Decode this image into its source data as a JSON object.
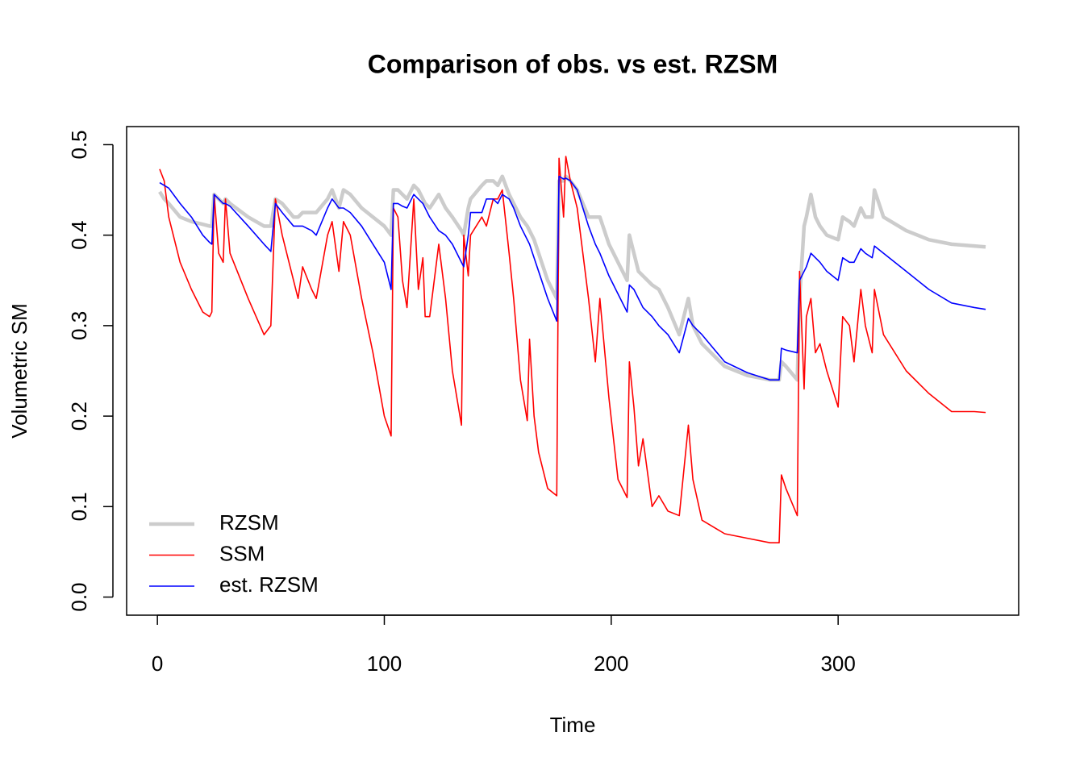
{
  "chart_data": {
    "type": "line",
    "title": "Comparison of obs. vs est. RZSM",
    "x_label": "Time",
    "y_label": "Volumetric SM",
    "x": [
      1,
      3,
      5,
      10,
      15,
      20,
      23,
      24,
      25,
      27,
      29,
      30,
      32,
      40,
      47,
      50,
      52,
      55,
      60,
      62,
      64,
      68,
      70,
      75,
      77,
      80,
      82,
      85,
      90,
      95,
      100,
      103,
      104,
      106,
      108,
      110,
      113,
      115,
      117,
      118,
      120,
      124,
      127,
      130,
      134,
      135,
      137,
      138,
      143,
      145,
      148,
      150,
      152,
      155,
      157,
      160,
      163,
      164,
      166,
      168,
      172,
      176,
      177,
      179,
      180,
      182,
      185,
      190,
      193,
      195,
      199,
      203,
      207,
      208,
      210,
      212,
      214,
      218,
      221,
      225,
      230,
      234,
      236,
      240,
      250,
      260,
      270,
      274,
      275,
      277,
      282,
      283,
      285,
      286,
      288,
      290,
      292,
      295,
      300,
      302,
      305,
      307,
      310,
      312,
      315,
      316,
      320,
      330,
      340,
      350,
      360,
      365
    ],
    "series": [
      {
        "name": "RZSM",
        "color": "#cccccc",
        "values": [
          0.448,
          0.44,
          0.435,
          0.42,
          0.415,
          0.412,
          0.41,
          0.41,
          0.445,
          0.44,
          0.435,
          0.44,
          0.435,
          0.42,
          0.41,
          0.41,
          0.44,
          0.435,
          0.42,
          0.42,
          0.425,
          0.425,
          0.425,
          0.44,
          0.45,
          0.43,
          0.45,
          0.445,
          0.43,
          0.42,
          0.41,
          0.4,
          0.45,
          0.45,
          0.445,
          0.44,
          0.455,
          0.45,
          0.44,
          0.435,
          0.43,
          0.445,
          0.43,
          0.42,
          0.405,
          0.4,
          0.43,
          0.44,
          0.455,
          0.46,
          0.46,
          0.455,
          0.465,
          0.445,
          0.435,
          0.42,
          0.41,
          0.405,
          0.395,
          0.38,
          0.35,
          0.33,
          0.46,
          0.46,
          0.465,
          0.46,
          0.45,
          0.42,
          0.42,
          0.42,
          0.39,
          0.37,
          0.35,
          0.4,
          0.38,
          0.36,
          0.355,
          0.345,
          0.34,
          0.32,
          0.29,
          0.33,
          0.3,
          0.28,
          0.255,
          0.245,
          0.24,
          0.24,
          0.26,
          0.255,
          0.24,
          0.33,
          0.41,
          0.42,
          0.445,
          0.42,
          0.41,
          0.4,
          0.395,
          0.42,
          0.415,
          0.41,
          0.43,
          0.42,
          0.42,
          0.45,
          0.42,
          0.405,
          0.395,
          0.39,
          0.388,
          0.387
        ]
      },
      {
        "name": "SSM",
        "color": "#ff0000",
        "values": [
          0.473,
          0.46,
          0.42,
          0.37,
          0.34,
          0.315,
          0.31,
          0.315,
          0.445,
          0.38,
          0.37,
          0.44,
          0.38,
          0.33,
          0.29,
          0.3,
          0.44,
          0.4,
          0.35,
          0.33,
          0.365,
          0.34,
          0.33,
          0.4,
          0.415,
          0.36,
          0.415,
          0.4,
          0.33,
          0.27,
          0.2,
          0.178,
          0.43,
          0.42,
          0.35,
          0.32,
          0.44,
          0.34,
          0.375,
          0.31,
          0.31,
          0.39,
          0.33,
          0.25,
          0.19,
          0.4,
          0.355,
          0.4,
          0.42,
          0.41,
          0.44,
          0.44,
          0.45,
          0.38,
          0.33,
          0.24,
          0.195,
          0.285,
          0.2,
          0.16,
          0.12,
          0.112,
          0.485,
          0.42,
          0.487,
          0.46,
          0.43,
          0.33,
          0.26,
          0.33,
          0.22,
          0.13,
          0.11,
          0.26,
          0.21,
          0.145,
          0.175,
          0.1,
          0.112,
          0.095,
          0.09,
          0.19,
          0.13,
          0.085,
          0.07,
          0.065,
          0.06,
          0.06,
          0.135,
          0.12,
          0.09,
          0.36,
          0.23,
          0.31,
          0.33,
          0.27,
          0.28,
          0.25,
          0.21,
          0.31,
          0.3,
          0.26,
          0.34,
          0.3,
          0.27,
          0.34,
          0.29,
          0.25,
          0.225,
          0.205,
          0.205,
          0.204
        ]
      },
      {
        "name": "est. RZSM",
        "color": "#0000ff",
        "values": [
          0.458,
          0.455,
          0.452,
          0.435,
          0.42,
          0.4,
          0.392,
          0.39,
          0.445,
          0.44,
          0.435,
          0.435,
          0.432,
          0.41,
          0.39,
          0.382,
          0.435,
          0.425,
          0.41,
          0.41,
          0.41,
          0.405,
          0.4,
          0.43,
          0.44,
          0.43,
          0.43,
          0.425,
          0.41,
          0.39,
          0.37,
          0.34,
          0.435,
          0.435,
          0.432,
          0.43,
          0.445,
          0.44,
          0.435,
          0.43,
          0.42,
          0.405,
          0.4,
          0.39,
          0.37,
          0.365,
          0.4,
          0.425,
          0.425,
          0.44,
          0.44,
          0.435,
          0.445,
          0.44,
          0.43,
          0.41,
          0.395,
          0.39,
          0.375,
          0.36,
          0.33,
          0.305,
          0.465,
          0.462,
          0.463,
          0.46,
          0.45,
          0.41,
          0.39,
          0.38,
          0.355,
          0.335,
          0.315,
          0.345,
          0.34,
          0.33,
          0.32,
          0.31,
          0.3,
          0.29,
          0.27,
          0.308,
          0.3,
          0.29,
          0.26,
          0.248,
          0.24,
          0.24,
          0.275,
          0.273,
          0.27,
          0.35,
          0.36,
          0.365,
          0.38,
          0.375,
          0.37,
          0.36,
          0.35,
          0.375,
          0.37,
          0.37,
          0.385,
          0.38,
          0.375,
          0.388,
          0.38,
          0.36,
          0.34,
          0.325,
          0.32,
          0.318
        ]
      }
    ],
    "xlim": [
      -13.56,
      379.56
    ],
    "ylim": [
      -0.02,
      0.52
    ],
    "xticks": [
      0,
      100,
      200,
      300
    ],
    "yticks": [
      {
        "value": 0,
        "label": "0.0"
      },
      0.1,
      0.2,
      0.3,
      0.4,
      0.5
    ],
    "legend": "bottomleft"
  }
}
